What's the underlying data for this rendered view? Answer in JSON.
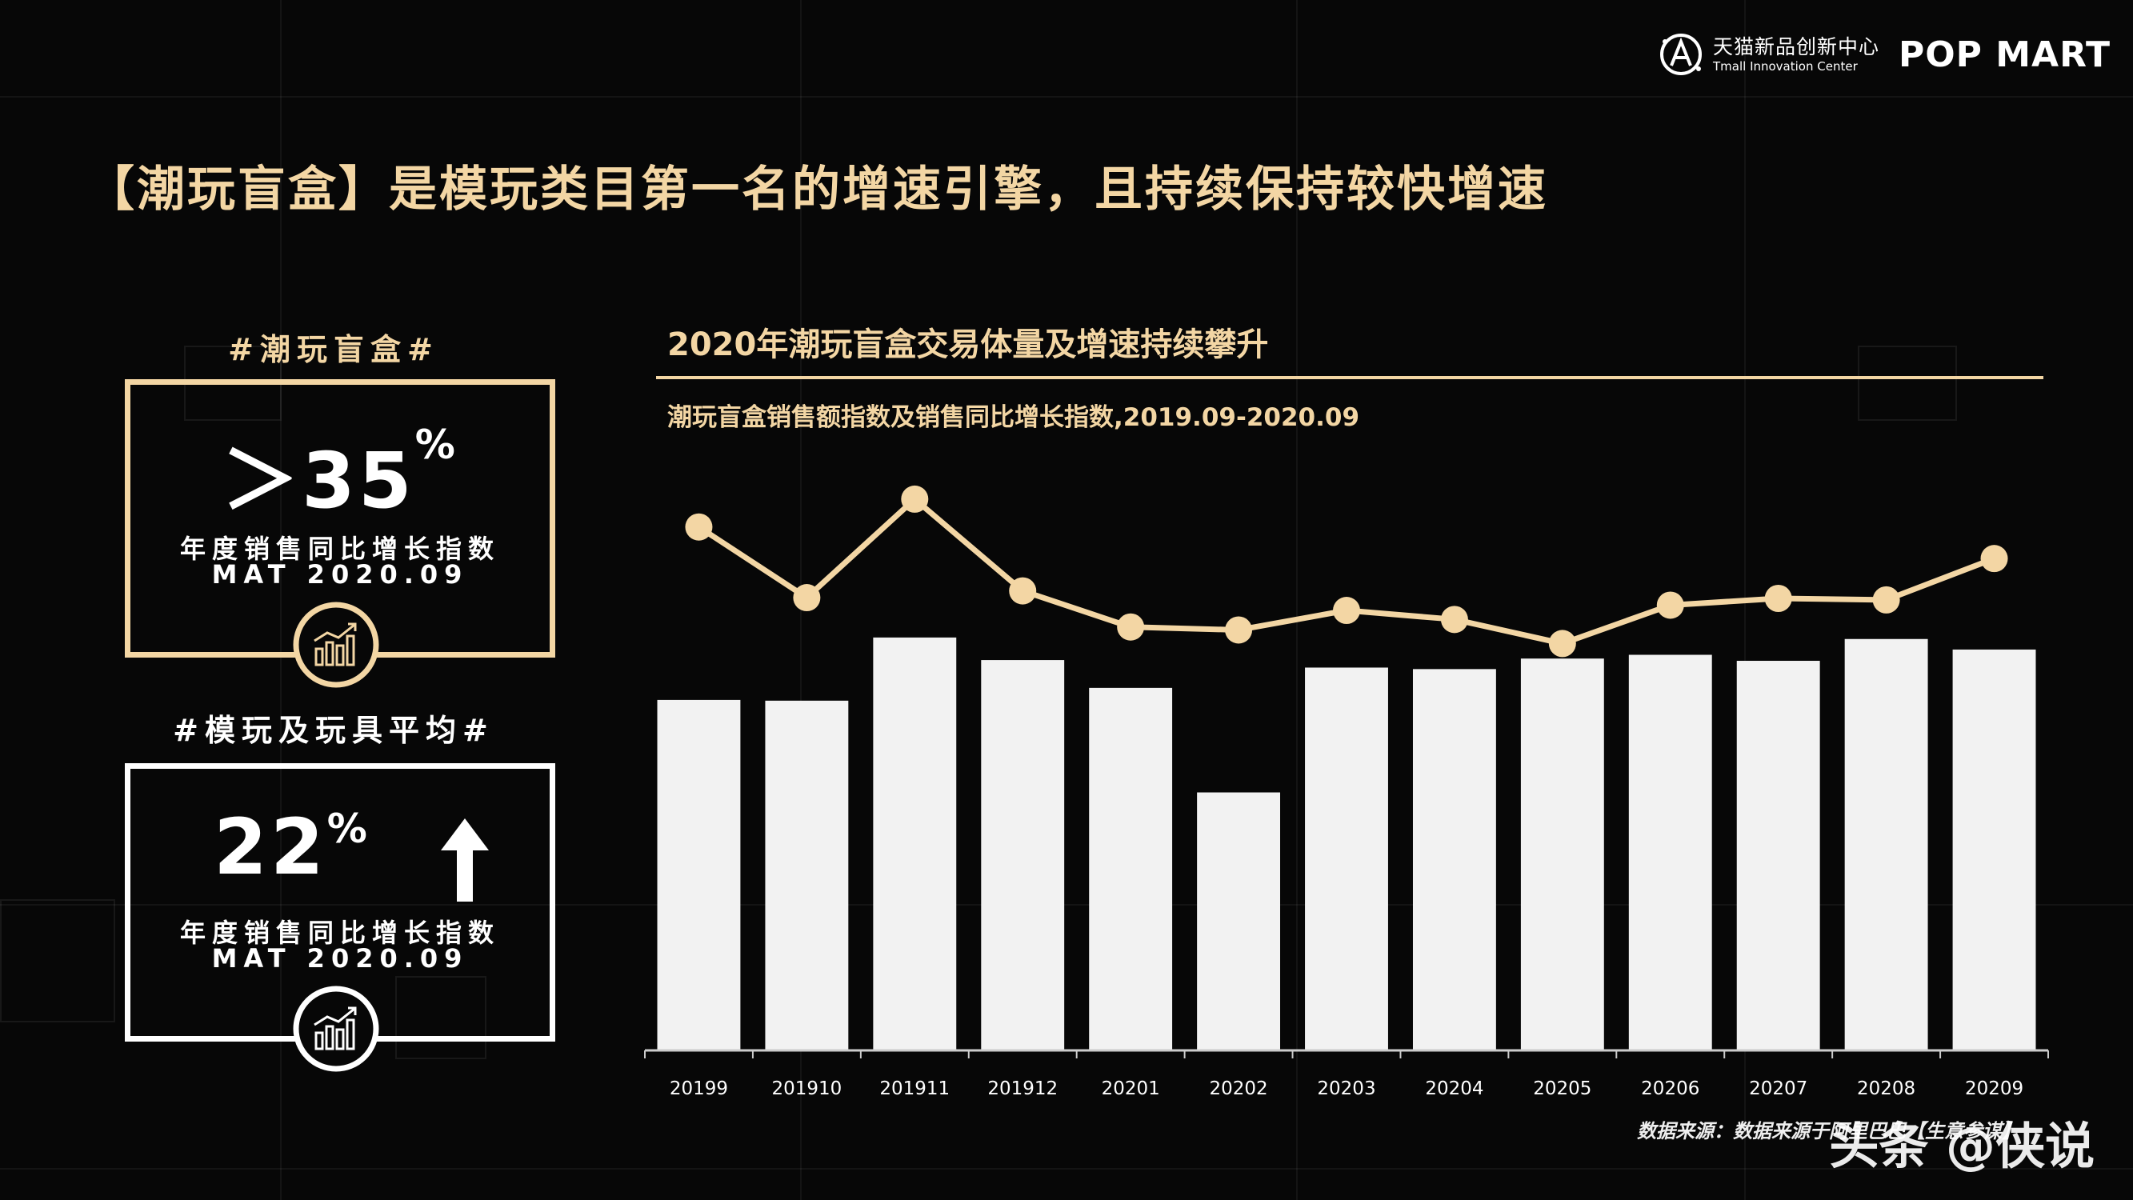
{
  "header": {
    "tmall_cn": "天猫新品创新中心",
    "tmall_en": "Tmall Innovation Center",
    "brand": "POP MART"
  },
  "title": "【潮玩盲盒】是模玩类目第一名的增速引擎，且持续保持较快增速",
  "left_panel": {
    "tag1": "#潮玩盲盒#",
    "stat1_value": "＞35",
    "stat1_unit": "%",
    "stat1_desc": "年度销售同比增长指数",
    "stat1_period": "MAT 2020.09",
    "tag2": "#模玩及玩具平均#",
    "stat2_value": "22",
    "stat2_unit": "%",
    "stat2_desc": "年度销售同比增长指数",
    "stat2_period": "MAT 2020.09",
    "icon_name": "growth-chart-icon"
  },
  "chart_heading": "2020年潮玩盲盒交易体量及增速持续攀升",
  "chart_data": {
    "type": "bar",
    "title": "2020年潮玩盲盒交易体量及增速持续攀升",
    "subtitle": "潮玩盲盒销售额指数及销售同比增长指数,2019.09-2020.09",
    "categories": [
      "20199",
      "201910",
      "201911",
      "201912",
      "20201",
      "20202",
      "20203",
      "20204",
      "20205",
      "20206",
      "20207",
      "20208",
      "20209"
    ],
    "series": [
      {
        "kind": "bar",
        "values": [
          465,
          464,
          548,
          518,
          481,
          342,
          508,
          506,
          520,
          525,
          517,
          546,
          532
        ]
      },
      {
        "kind": "line",
        "values": [
          695,
          601,
          732,
          610,
          562,
          558,
          584,
          572,
          540,
          591,
          600,
          598,
          653
        ]
      }
    ],
    "ylim": [
      0,
      800
    ],
    "grid": false,
    "legend": "none",
    "colors": {
      "bar": "#f2f2f2",
      "line": "#f3d6a4",
      "axis": "#cccccc"
    }
  },
  "source": "数据来源：数据来源于阿里巴巴【生意参谋】",
  "watermark": "头条 @侠说",
  "colors": {
    "accent": "#f3d6a4",
    "background": "#070707",
    "text": "#ffffff"
  }
}
